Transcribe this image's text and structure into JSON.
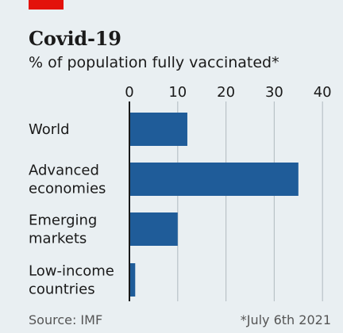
{
  "header": {
    "title": "Covid-19",
    "subtitle": "% of population fully vaccinated*"
  },
  "footer": {
    "source": "Source: IMF",
    "note": "*July 6th 2021"
  },
  "colors": {
    "bar": "#1f5c99",
    "accent_tag": "#e3120b",
    "background": "#e9eff2",
    "gridline": "#b9c2c7",
    "axis": "#1a1a1a"
  },
  "chart_data": {
    "type": "bar",
    "orientation": "horizontal",
    "title": "Covid-19",
    "subtitle": "% of population fully vaccinated*",
    "categories": [
      [
        "World"
      ],
      [
        "Advanced",
        "economies"
      ],
      [
        "Emerging",
        "markets"
      ],
      [
        "Low-income",
        "countries"
      ]
    ],
    "values": [
      12,
      35,
      10,
      1.2
    ],
    "xlim": [
      0,
      40
    ],
    "xticks": [
      0,
      10,
      20,
      30,
      40
    ],
    "grid": true,
    "legend": "none"
  }
}
